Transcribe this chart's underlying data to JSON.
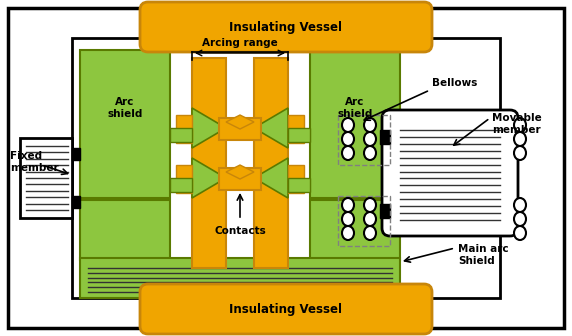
{
  "bg_color": "#ffffff",
  "green": "#8dc63f",
  "gold": "#f0a500",
  "dark_gold": "#c8860a",
  "black": "#000000",
  "gray": "#888888",
  "title_top": "Insulating Vessel",
  "title_bottom": "Insulating Vessel",
  "label_arc_shield_left": "Arc\nshield",
  "label_arc_shield_right": "Arc\nshield",
  "label_arcing_range": "Arcing range",
  "label_contacts": "Contacts",
  "label_bellows": "Bellows",
  "label_fixed_member": "Fixed\nmember",
  "label_movable_member": "Movable\nmember",
  "label_main_arc_shield": "Main arc\nShield"
}
